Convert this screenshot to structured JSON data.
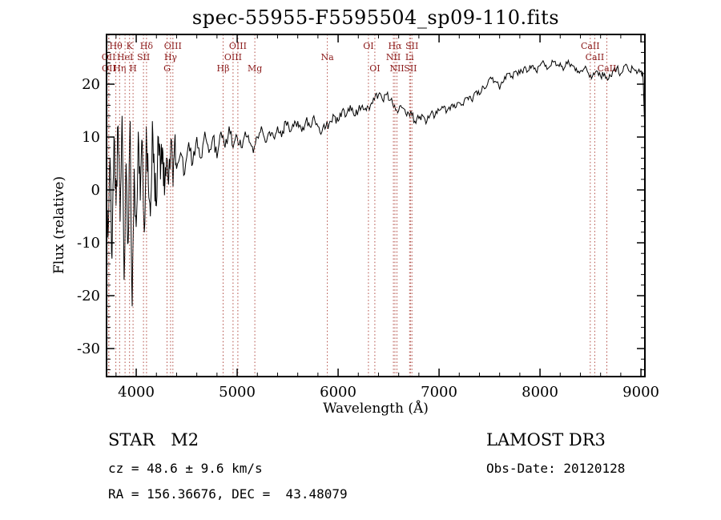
{
  "chart_data": {
    "type": "line",
    "title": "spec-55955-F5595504_sp09-110.fits",
    "xlabel": "Wavelength (Å)",
    "ylabel": "Flux (relative)",
    "xlim": [
      3706,
      9039
    ],
    "ylim": [
      -35.3,
      29.4
    ],
    "grid": false,
    "x_ticks": {
      "major": [
        4000,
        5000,
        6000,
        7000,
        8000,
        9000
      ],
      "minor_step": 200
    },
    "y_ticks": {
      "major": [
        -30,
        -20,
        -10,
        0,
        10,
        20
      ],
      "minor_step": 2
    },
    "noise_seed": 11,
    "noise_profile": [
      {
        "until": 4400,
        "amp": 4.0
      },
      {
        "until": 5000,
        "amp": 1.5
      },
      {
        "until": 6000,
        "amp": 1.0
      },
      {
        "until": 7000,
        "amp": 0.8
      },
      {
        "until": 9100,
        "amp": 0.7
      }
    ],
    "spectral_lines": [
      {
        "label": "Hθ",
        "wavelength": 3798,
        "row": 1
      },
      {
        "label": "K",
        "wavelength": 3934,
        "row": 1
      },
      {
        "label": "Hδ",
        "wavelength": 4102,
        "row": 1
      },
      {
        "label": "OIII",
        "wavelength": 4363,
        "row": 1
      },
      {
        "label": "OIII",
        "wavelength": 5007,
        "row": 1
      },
      {
        "label": "OI",
        "wavelength": 6300,
        "row": 1
      },
      {
        "label": "Hα",
        "wavelength": 6563,
        "row": 1
      },
      {
        "label": "SII",
        "wavelength": 6731,
        "row": 1
      },
      {
        "label": "CaII",
        "wavelength": 8498,
        "row": 1
      },
      {
        "label": "OII",
        "wavelength": 3727,
        "row": 2
      },
      {
        "label": "HeI",
        "wavelength": 3889,
        "row": 2
      },
      {
        "label": "SII",
        "wavelength": 4072,
        "row": 2
      },
      {
        "label": "Hγ",
        "wavelength": 4340,
        "row": 2
      },
      {
        "label": "OIII",
        "wavelength": 4959,
        "row": 2
      },
      {
        "label": "Na",
        "wavelength": 5893,
        "row": 2
      },
      {
        "label": "NII",
        "wavelength": 6548,
        "row": 2
      },
      {
        "label": "Li",
        "wavelength": 6708,
        "row": 2
      },
      {
        "label": "CaII",
        "wavelength": 8542,
        "row": 2
      },
      {
        "label": "OII",
        "wavelength": 3729,
        "row": 3
      },
      {
        "label": "Hη",
        "wavelength": 3835,
        "row": 3
      },
      {
        "label": "H",
        "wavelength": 3969,
        "row": 3
      },
      {
        "label": "G",
        "wavelength": 4305,
        "row": 3
      },
      {
        "label": "Hβ",
        "wavelength": 4861,
        "row": 3
      },
      {
        "label": "Mg",
        "wavelength": 5175,
        "row": 3
      },
      {
        "label": "OI",
        "wavelength": 6364,
        "row": 3
      },
      {
        "label": "NII",
        "wavelength": 6583,
        "row": 3
      },
      {
        "label": "SII",
        "wavelength": 6717,
        "row": 3
      },
      {
        "label": "CaII",
        "wavelength": 8662,
        "row": 3
      }
    ],
    "spectrum": [
      [
        3700,
        1
      ],
      [
        3720,
        -9
      ],
      [
        3740,
        6
      ],
      [
        3760,
        -13
      ],
      [
        3780,
        10
      ],
      [
        3800,
        -3
      ],
      [
        3820,
        12
      ],
      [
        3840,
        -6
      ],
      [
        3860,
        14
      ],
      [
        3880,
        -17
      ],
      [
        3900,
        5
      ],
      [
        3920,
        -10
      ],
      [
        3940,
        13
      ],
      [
        3960,
        -22
      ],
      [
        3980,
        4
      ],
      [
        4000,
        -7
      ],
      [
        4020,
        11
      ],
      [
        4040,
        -2
      ],
      [
        4060,
        9
      ],
      [
        4080,
        -8
      ],
      [
        4100,
        12
      ],
      [
        4120,
        1
      ],
      [
        4140,
        -5
      ],
      [
        4160,
        13
      ],
      [
        4180,
        3
      ],
      [
        4200,
        -3
      ],
      [
        4220,
        10
      ],
      [
        4240,
        2
      ],
      [
        4260,
        8
      ],
      [
        4280,
        -1
      ],
      [
        4300,
        6
      ],
      [
        4320,
        1
      ],
      [
        4340,
        8
      ],
      [
        4360,
        3
      ],
      [
        4380,
        9
      ],
      [
        4400,
        4
      ],
      [
        4440,
        7
      ],
      [
        4480,
        3
      ],
      [
        4520,
        9
      ],
      [
        4560,
        5
      ],
      [
        4600,
        10
      ],
      [
        4640,
        6
      ],
      [
        4680,
        11
      ],
      [
        4720,
        7
      ],
      [
        4760,
        10
      ],
      [
        4800,
        6
      ],
      [
        4840,
        11
      ],
      [
        4880,
        8
      ],
      [
        4920,
        12
      ],
      [
        4960,
        8
      ],
      [
        5000,
        10
      ],
      [
        5040,
        8
      ],
      [
        5080,
        11
      ],
      [
        5120,
        9
      ],
      [
        5160,
        7
      ],
      [
        5200,
        10
      ],
      [
        5240,
        12
      ],
      [
        5280,
        9
      ],
      [
        5320,
        11
      ],
      [
        5360,
        10
      ],
      [
        5400,
        12
      ],
      [
        5440,
        10
      ],
      [
        5480,
        13
      ],
      [
        5520,
        11
      ],
      [
        5560,
        12
      ],
      [
        5600,
        13
      ],
      [
        5640,
        11
      ],
      [
        5680,
        13
      ],
      [
        5720,
        12
      ],
      [
        5760,
        14
      ],
      [
        5800,
        12
      ],
      [
        5840,
        11
      ],
      [
        5880,
        12
      ],
      [
        5920,
        13
      ],
      [
        5960,
        14
      ],
      [
        6000,
        13
      ],
      [
        6040,
        15
      ],
      [
        6080,
        14
      ],
      [
        6120,
        16
      ],
      [
        6160,
        14
      ],
      [
        6200,
        15
      ],
      [
        6240,
        16
      ],
      [
        6280,
        15
      ],
      [
        6320,
        16
      ],
      [
        6360,
        17
      ],
      [
        6400,
        18
      ],
      [
        6440,
        17
      ],
      [
        6480,
        18
      ],
      [
        6520,
        17
      ],
      [
        6560,
        16
      ],
      [
        6600,
        15
      ],
      [
        6640,
        15.5
      ],
      [
        6680,
        14
      ],
      [
        6720,
        15
      ],
      [
        6760,
        13
      ],
      [
        6800,
        13.5
      ],
      [
        6840,
        14
      ],
      [
        6880,
        13
      ],
      [
        6920,
        14.5
      ],
      [
        6960,
        14
      ],
      [
        7000,
        15
      ],
      [
        7040,
        15.5
      ],
      [
        7080,
        15
      ],
      [
        7120,
        16
      ],
      [
        7160,
        15.5
      ],
      [
        7200,
        16.5
      ],
      [
        7240,
        16
      ],
      [
        7280,
        17.5
      ],
      [
        7320,
        17
      ],
      [
        7360,
        18.5
      ],
      [
        7400,
        18
      ],
      [
        7440,
        19.5
      ],
      [
        7480,
        20
      ],
      [
        7520,
        21
      ],
      [
        7560,
        20.5
      ],
      [
        7600,
        19
      ],
      [
        7640,
        20.5
      ],
      [
        7680,
        22
      ],
      [
        7720,
        21.5
      ],
      [
        7760,
        22.5
      ],
      [
        7800,
        22
      ],
      [
        7840,
        23
      ],
      [
        7880,
        22.5
      ],
      [
        7920,
        23.5
      ],
      [
        7960,
        22.5
      ],
      [
        8000,
        23.5
      ],
      [
        8040,
        24
      ],
      [
        8080,
        23
      ],
      [
        8120,
        24.5
      ],
      [
        8160,
        23.5
      ],
      [
        8200,
        24
      ],
      [
        8240,
        23
      ],
      [
        8280,
        24.5
      ],
      [
        8320,
        23.5
      ],
      [
        8360,
        23
      ],
      [
        8400,
        22.5
      ],
      [
        8440,
        23
      ],
      [
        8480,
        22
      ],
      [
        8520,
        21.5
      ],
      [
        8560,
        22.5
      ],
      [
        8600,
        21.5
      ],
      [
        8640,
        22
      ],
      [
        8680,
        21
      ],
      [
        8720,
        22.5
      ],
      [
        8760,
        23
      ],
      [
        8800,
        22
      ],
      [
        8840,
        23.5
      ],
      [
        8880,
        22.5
      ],
      [
        8920,
        23
      ],
      [
        8960,
        22
      ],
      [
        9000,
        22.5
      ],
      [
        9020,
        21.5
      ],
      [
        9035,
        13
      ]
    ]
  },
  "annotations": {
    "class_line": "STAR   M2",
    "cz_line": "cz = 48.6 ± 9.6 km/s",
    "radec_line": "RA = 156.36676, DEC =  43.48079",
    "survey": "LAMOST DR3",
    "obs_date": "Obs-Date: 20120128"
  },
  "colors": {
    "background": "#ffffff",
    "spectrum": "#000000",
    "axis": "#000000",
    "line_marker": "#b04a42",
    "marker_label": "#8b1a1a"
  }
}
